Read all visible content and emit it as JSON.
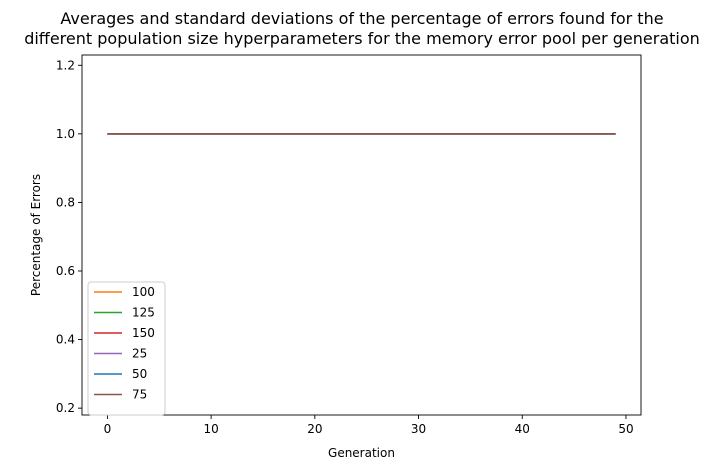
{
  "chart_data": {
    "type": "line",
    "title_lines": [
      "Averages and standard deviations of the percentage of errors found for the",
      "different population size hyperparameters for the memory error pool per generation"
    ],
    "xlabel": "Generation",
    "ylabel": "Percentage of Errors",
    "xlim": [
      -2.45,
      51.45
    ],
    "ylim": [
      0.18,
      1.23
    ],
    "xticks": [
      0,
      10,
      20,
      30,
      40,
      50
    ],
    "xtick_labels": [
      "0",
      "10",
      "20",
      "30",
      "40",
      "50"
    ],
    "yticks": [
      0.2,
      0.4,
      0.6,
      0.8,
      1.0,
      1.2
    ],
    "ytick_labels": [
      "0.2",
      "0.4",
      "0.6",
      "0.8",
      "1.0",
      "1.2"
    ],
    "grid": false,
    "legend_position": "lower-left",
    "x_start": 0,
    "x_end": 49,
    "series": [
      {
        "name": "100",
        "color": "#ff7f0e",
        "value": 1.0
      },
      {
        "name": "125",
        "color": "#2ca02c",
        "value": 1.0
      },
      {
        "name": "150",
        "color": "#d62728",
        "value": 1.0
      },
      {
        "name": "25",
        "color": "#9467bd",
        "value": 1.0
      },
      {
        "name": "50",
        "color": "#1f77b4",
        "value": 1.0
      },
      {
        "name": "75",
        "color": "#8c564b",
        "value": 1.0
      }
    ]
  }
}
